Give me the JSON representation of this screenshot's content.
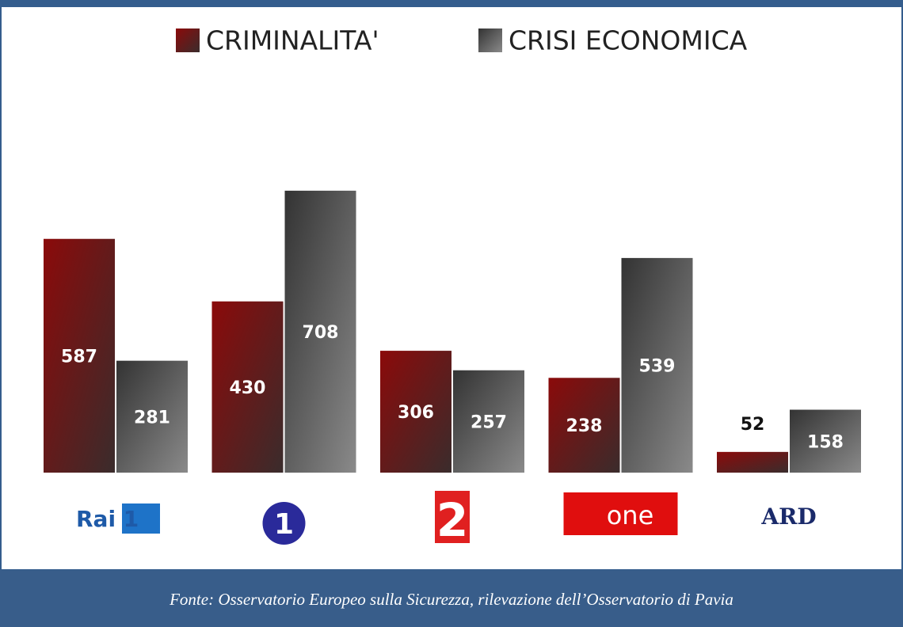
{
  "chart_data": {
    "type": "bar",
    "categories": [
      "Rai 1",
      "1",
      "2",
      "one",
      "ARD"
    ],
    "series": [
      {
        "name": "CRIMINALITA'",
        "color": "#8b0d0d",
        "values": [
          587,
          430,
          306,
          238,
          52
        ]
      },
      {
        "name": "CRISI ECONOMICA",
        "color": "#444444",
        "values": [
          281,
          708,
          257,
          539,
          158
        ]
      }
    ],
    "source": "Fonte: Osservatorio Europeo sulla Sicurezza, rilevazione dell’Osservatorio di Pavia"
  }
}
